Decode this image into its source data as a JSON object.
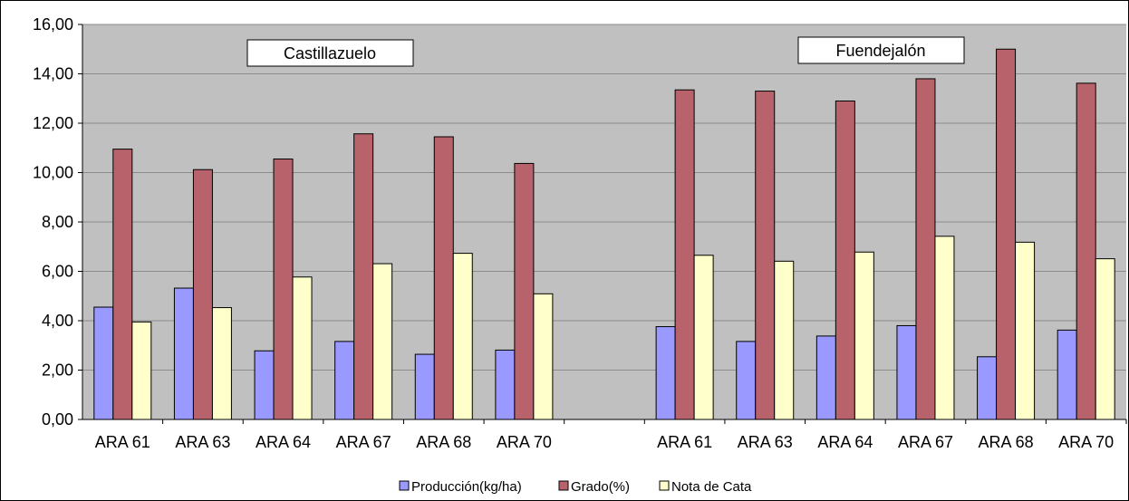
{
  "chart_data": {
    "type": "bar",
    "ylim": [
      0,
      16
    ],
    "y_ticks": [
      "0,00",
      "2,00",
      "4,00",
      "6,00",
      "8,00",
      "10,00",
      "12,00",
      "14,00",
      "16,00"
    ],
    "y_tick_values": [
      0,
      2,
      4,
      6,
      8,
      10,
      12,
      14,
      16
    ],
    "grid": true,
    "legend_position": "bottom",
    "categories": [
      "ARA 61",
      "ARA 63",
      "ARA 64",
      "ARA 67",
      "ARA 68",
      "ARA 70",
      "",
      "ARA 61",
      "ARA 63",
      "ARA 64",
      "ARA 67",
      "ARA 68",
      "ARA 70"
    ],
    "groups": [
      {
        "label": "Castillazuelo",
        "categories": [
          "ARA 61",
          "ARA 63",
          "ARA 64",
          "ARA 67",
          "ARA 68",
          "ARA 70"
        ]
      },
      {
        "label": "Fuendejalón",
        "categories": [
          "ARA 61",
          "ARA 63",
          "ARA 64",
          "ARA 67",
          "ARA 68",
          "ARA 70"
        ]
      }
    ],
    "series": [
      {
        "name": "Producción(kg/ha)",
        "color": "#9999ff",
        "values": [
          4.55,
          5.32,
          2.78,
          3.16,
          2.64,
          2.81,
          null,
          3.76,
          3.16,
          3.38,
          3.8,
          2.54,
          3.62
        ]
      },
      {
        "name": "Grado(%)",
        "color": "#b8636b",
        "values": [
          10.95,
          10.12,
          10.55,
          11.57,
          11.45,
          10.37,
          null,
          13.35,
          13.3,
          12.9,
          13.8,
          15.0,
          13.62
        ]
      },
      {
        "name": "Nota de Cata",
        "color": "#ffffcc",
        "values": [
          3.95,
          4.53,
          5.77,
          6.31,
          6.73,
          5.09,
          null,
          6.65,
          6.41,
          6.78,
          7.42,
          7.18,
          6.51
        ]
      }
    ],
    "colors": {
      "plot_background": "#c0c0c0",
      "gridline": "#8c8c8c"
    }
  }
}
